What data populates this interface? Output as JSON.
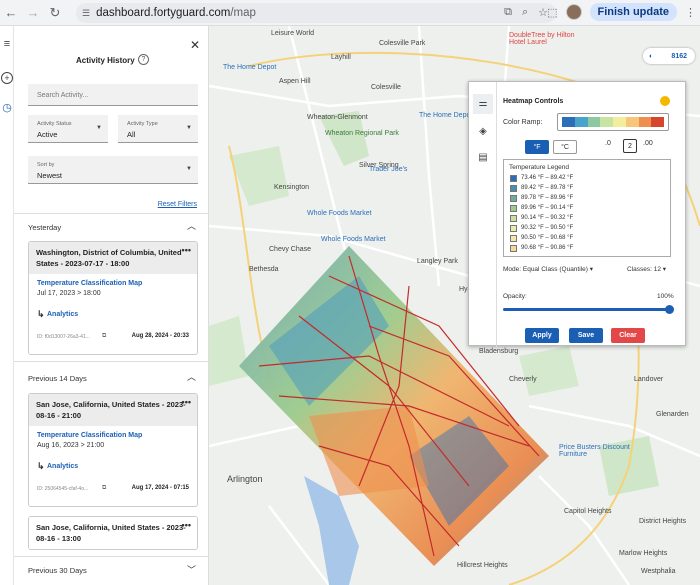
{
  "browser": {
    "url_host": "dashboard.fortyguard.com",
    "url_path": "/map",
    "finish_update": "Finish update"
  },
  "panel": {
    "title": "Activity History",
    "search_placeholder": "Search Activity...",
    "status_label": "Activity Status",
    "status_value": "Active",
    "type_label": "Activity Type",
    "type_value": "All",
    "sort_label": "Sort by",
    "sort_value": "Newest",
    "reset_filters": "Reset Filters",
    "sections": [
      {
        "label": "Yesterday",
        "cards": [
          {
            "title": "Washington, District of Columbia, United States - 2023-07-17 - 18:00",
            "activity": "Temperature Classification Map",
            "date": "Jul 17, 2023 > 18:00",
            "link": "Analytics",
            "id": "ID: f0d13007-26a3-41...",
            "created": "Aug 28, 2024 - 20:33"
          }
        ]
      },
      {
        "label": "Previous 14 Days",
        "cards": [
          {
            "title": "San Jose, California, United States - 2023-08-16 - 21:00",
            "activity": "Temperature Classification Map",
            "date": "Aug 16, 2023 > 21:00",
            "link": "Analytics",
            "id": "ID: 25064545-cfaf-4o...",
            "created": "Aug 17, 2024 - 07:15"
          },
          {
            "title": "San Jose, California, United States - 2023-08-16 - 13:00"
          }
        ]
      },
      {
        "label": "Previous 30 Days"
      }
    ]
  },
  "map": {
    "badge": "8162",
    "labels": [
      "Leisure World",
      "Colesville Park",
      "Layhill",
      "Aspen Hill",
      "Colesville",
      "Wheaton-Glenmont",
      "Wheaton Regional Park",
      "Silver Spring",
      "Kensington",
      "Bethesda",
      "Chevy Chase",
      "Langley Park",
      "Hyattsville",
      "Arlington",
      "Bladensburg",
      "Cheverly",
      "Capitol Heights",
      "District Heights",
      "Marlow Heights",
      "Hillcrest Heights",
      "Westphalia",
      "Landover",
      "Glenarden"
    ],
    "pois": [
      "The Home Depot",
      "The Home Depot",
      "Trader Joe's",
      "Whole Foods Market",
      "Whole Foods Market",
      "Price Busters Discount Furniture",
      "DoubleTree by Hilton Hotel Laurel"
    ]
  },
  "heatmap": {
    "title": "Heatmap Controls",
    "ramp_label": "Color Ramp:",
    "ramp_colors": [
      "#2c6fb8",
      "#4aa3c8",
      "#8cc9a0",
      "#c9e4a0",
      "#f3ee9e",
      "#f7c67a",
      "#ef8f4f",
      "#d8452d"
    ],
    "unit_f": "°F",
    "unit_c": "°C",
    "precision": "2",
    "prec_less": ".0",
    "prec_more": ".00",
    "legend_title": "Temperature Legend",
    "legend": [
      {
        "range": "73.46 °F – 89.42 °F",
        "color": "#2c6fb8"
      },
      {
        "range": "89.42 °F – 89.78 °F",
        "color": "#4a8fb0"
      },
      {
        "range": "89.78 °F – 89.96 °F",
        "color": "#6fae9a"
      },
      {
        "range": "89.96 °F – 90.14 °F",
        "color": "#9ccb8c"
      },
      {
        "range": "90.14 °F – 90.32 °F",
        "color": "#c9e09a"
      },
      {
        "range": "90.32 °F – 90.50 °F",
        "color": "#e9eba8"
      },
      {
        "range": "90.50 °F – 90.68 °F",
        "color": "#f5e7a8"
      },
      {
        "range": "90.68 °F – 90.86 °F",
        "color": "#f5d79a"
      }
    ],
    "mode": "Mode: Equal Class (Quantile)",
    "classes": "Classes: 12",
    "opacity_label": "Opacity:",
    "opacity_value": "100%",
    "apply": "Apply",
    "save": "Save",
    "clear": "Clear"
  }
}
